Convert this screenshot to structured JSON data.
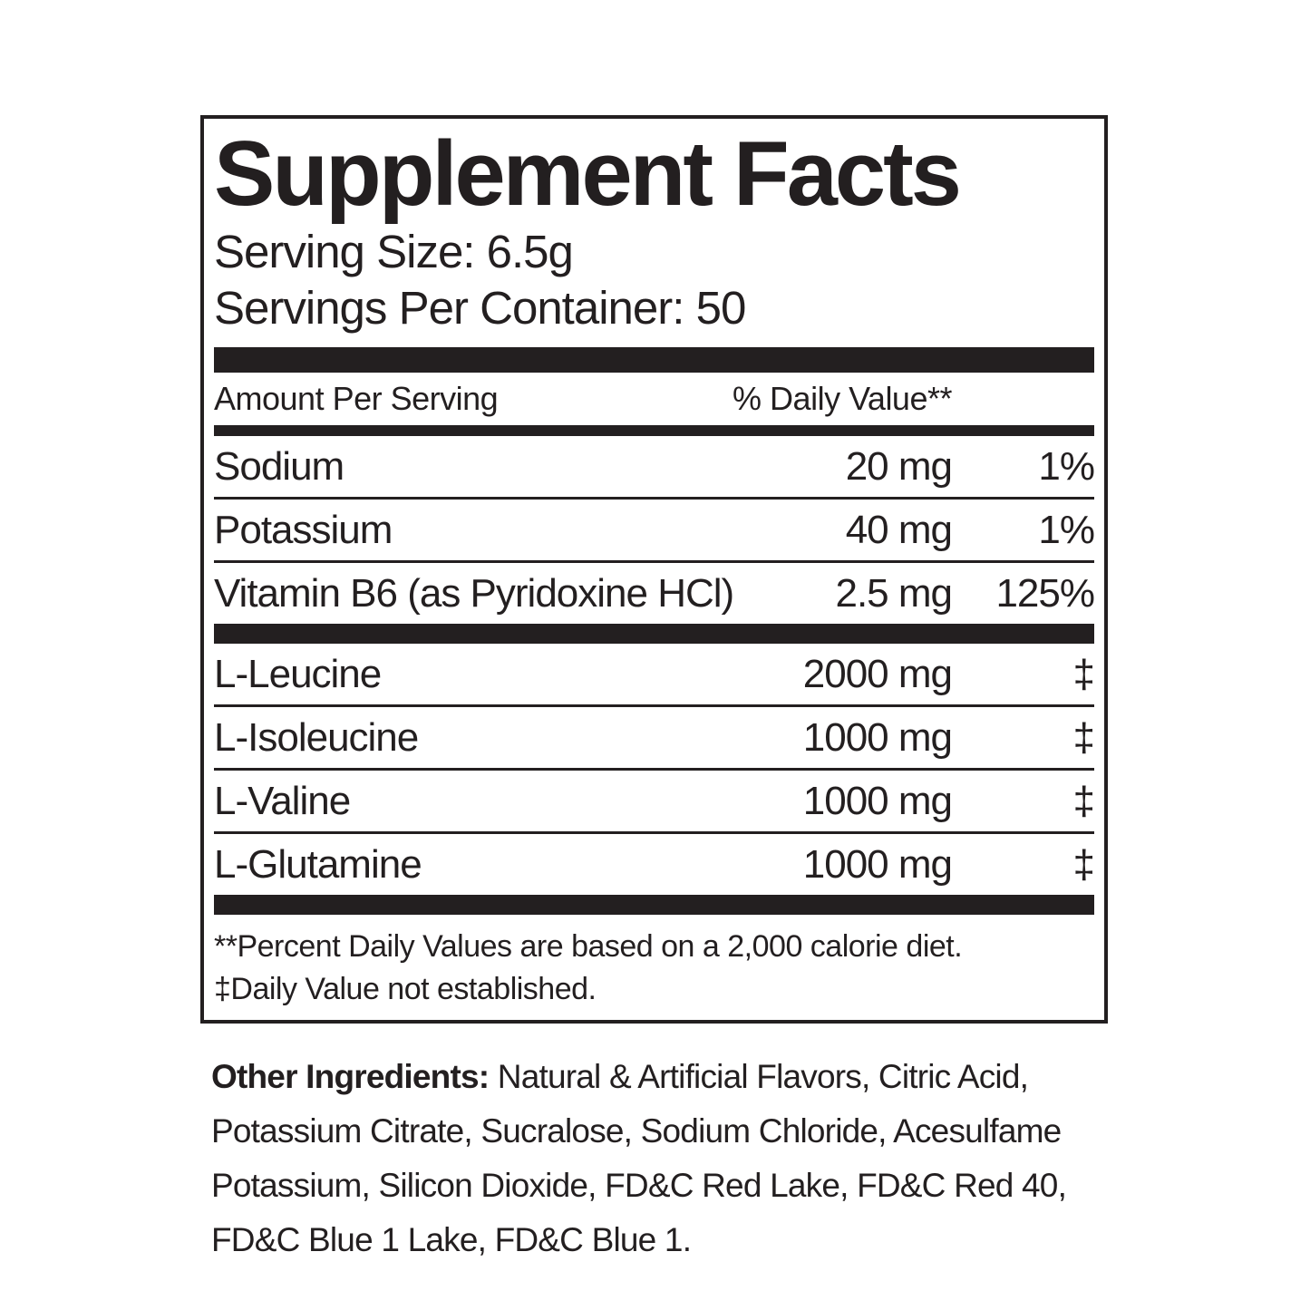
{
  "label": {
    "title": "Supplement Facts",
    "serving_size": "Serving Size: 6.5g",
    "servings_per_container": "Servings Per Container: 50",
    "columns": {
      "amount_header": "Amount Per Serving",
      "dv_header": "% Daily Value**"
    },
    "nutrients": [
      {
        "name": "Sodium",
        "amount": "20 mg",
        "dv": "1%"
      },
      {
        "name": "Potassium",
        "amount": "40 mg",
        "dv": "1%"
      },
      {
        "name": "Vitamin B6 (as Pyridoxine HCl)",
        "amount": "2.5 mg",
        "dv": "125%"
      }
    ],
    "aminos": [
      {
        "name": "L-Leucine",
        "amount": "2000 mg",
        "dv": "‡"
      },
      {
        "name": "L-Isoleucine",
        "amount": "1000 mg",
        "dv": "‡"
      },
      {
        "name": "L-Valine",
        "amount": "1000 mg",
        "dv": "‡"
      },
      {
        "name": "L-Glutamine",
        "amount": "1000 mg",
        "dv": "‡"
      }
    ],
    "footnotes": [
      "**Percent Daily Values are based on a 2,000 calorie diet.",
      "‡Daily Value not established."
    ],
    "other_ingredients_label": "Other Ingredients:",
    "other_ingredients_text": " Natural & Artificial Flavors, Citric Acid, Potassium Citrate, Sucralose, Sodium Chloride, Acesulfame Potassium, Silicon Dioxide, FD&C Red Lake, FD&C Red 40, FD&C Blue 1 Lake, FD&C Blue 1.",
    "colors": {
      "ink": "#231f20",
      "background": "#ffffff"
    }
  }
}
